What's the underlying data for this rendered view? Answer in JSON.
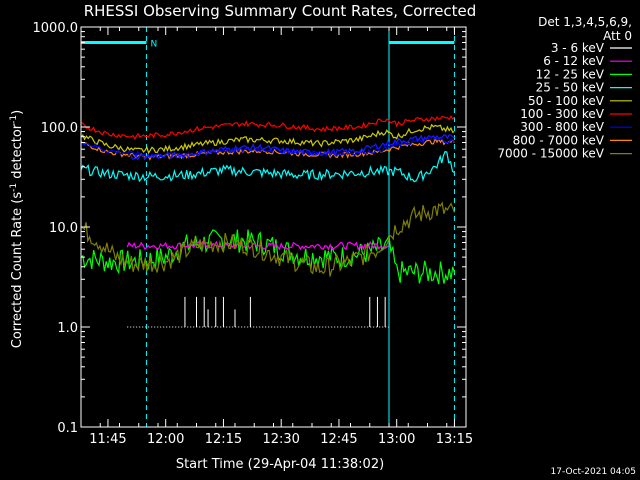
{
  "chart_data": {
    "type": "line",
    "title": "RHESSI Observing Summary Count Rates, Corrected",
    "xlabel": "Start Time (29-Apr-04 11:38:02)",
    "ylabel_main": "Corrected Count Rate (s",
    "ylabel_sup1": "-1",
    "ylabel_mid": " detector",
    "ylabel_sup2": "-1",
    "ylabel_end": ")",
    "yscale": "log",
    "ylim": [
      0.1,
      1000
    ],
    "xlim": [
      "11:38",
      "13:18"
    ],
    "x_ticks": [
      "11:45",
      "12:00",
      "12:15",
      "12:30",
      "12:45",
      "13:00",
      "13:15"
    ],
    "y_ticks": [
      "0.1",
      "1.0",
      "10.0",
      "100.0",
      "1000.0"
    ],
    "legend_header_1": "Det 1,3,4,5,6,9,",
    "legend_header_2": "Att 0",
    "legend_position": "top-right",
    "timestamp": "17-Oct-2021 04:05",
    "night_marker": "N",
    "night_bar_1": [
      "11:38",
      "11:55"
    ],
    "night_bar_2": [
      "12:58",
      "13:15"
    ],
    "vertical_solid": [
      "11:38",
      "12:58"
    ],
    "vertical_dashed": [
      "11:55",
      "13:15"
    ],
    "series": [
      {
        "name": "3 - 6 keV",
        "color": "#000000",
        "x": [
          "11:50",
          "12:05",
          "12:10",
          "12:15",
          "12:20",
          "12:25",
          "12:30",
          "12:40",
          "12:50",
          "12:55",
          "13:00",
          "13:05",
          "13:10",
          "13:15"
        ],
        "values": [
          50,
          52,
          56,
          60,
          62,
          63,
          58,
          55,
          58,
          65,
          72,
          76,
          80,
          78
        ]
      },
      {
        "name": "6 - 12 keV",
        "color": "#ff00ff",
        "x": [
          "11:50",
          "12:00",
          "12:10",
          "12:20",
          "12:30",
          "12:40",
          "12:50",
          "12:58"
        ],
        "values": [
          6.5,
          6.5,
          6.6,
          6.5,
          6.4,
          6.5,
          6.5,
          6.6
        ]
      },
      {
        "name": "12 - 25 keV",
        "color": "#00ff00",
        "x": [
          "11:38",
          "11:45",
          "11:52",
          "12:00",
          "12:05",
          "12:15",
          "12:25",
          "12:35",
          "12:45",
          "12:52",
          "12:58",
          "13:00",
          "13:05",
          "13:15"
        ],
        "values": [
          5.0,
          4.5,
          4.5,
          5.0,
          6.5,
          7.5,
          7.0,
          5.2,
          5.0,
          5.5,
          6.5,
          3.5,
          3.5,
          3.5
        ]
      },
      {
        "name": "25 - 50 keV",
        "color": "#00ffff",
        "x": [
          "11:38",
          "11:45",
          "11:55",
          "12:05",
          "12:15",
          "12:25",
          "12:35",
          "12:45",
          "12:55",
          "13:00",
          "13:05",
          "13:10",
          "13:13",
          "13:15"
        ],
        "values": [
          38,
          34,
          32,
          33,
          37,
          35,
          33,
          34,
          36,
          36,
          30,
          40,
          55,
          35
        ]
      },
      {
        "name": "50 - 100 keV",
        "color": "#cccc00",
        "x": [
          "11:38",
          "11:45",
          "11:52",
          "12:00",
          "12:10",
          "12:20",
          "12:30",
          "12:40",
          "12:50",
          "12:57",
          "13:00",
          "13:05",
          "13:10",
          "13:15"
        ],
        "values": [
          82,
          65,
          58,
          60,
          68,
          75,
          73,
          68,
          75,
          90,
          80,
          95,
          100,
          90
        ]
      },
      {
        "name": "100 - 300 keV",
        "color": "#ff0000",
        "x": [
          "11:38",
          "11:45",
          "11:52",
          "12:00",
          "12:10",
          "12:20",
          "12:30",
          "12:40",
          "12:50",
          "12:57",
          "13:00",
          "13:05",
          "13:10",
          "13:15"
        ],
        "values": [
          105,
          85,
          80,
          84,
          98,
          108,
          104,
          95,
          100,
          120,
          108,
          118,
          122,
          125
        ]
      },
      {
        "name": "300 - 800 keV",
        "color": "#0000ff",
        "x": [
          "11:38",
          "11:45",
          "11:55",
          "12:05",
          "12:15",
          "12:25",
          "12:35",
          "12:45",
          "12:55",
          "13:00",
          "13:05",
          "13:10",
          "13:15"
        ],
        "values": [
          72,
          58,
          52,
          54,
          58,
          60,
          56,
          54,
          58,
          66,
          72,
          75,
          72
        ]
      },
      {
        "name": "800 - 7000 keV",
        "color": "#ff8800",
        "x": [
          "11:38",
          "11:45",
          "11:55",
          "12:05",
          "12:15",
          "12:25",
          "12:35",
          "12:45",
          "12:55",
          "13:00",
          "13:05",
          "13:10",
          "13:15"
        ],
        "values": [
          70,
          56,
          50,
          52,
          56,
          58,
          54,
          52,
          56,
          63,
          68,
          72,
          70
        ]
      },
      {
        "name": "7000 - 15000 keV",
        "color": "#808000",
        "x": [
          "11:38",
          "11:42",
          "11:47",
          "11:52",
          "12:00",
          "12:08",
          "12:15",
          "12:22",
          "12:30",
          "12:40",
          "12:48",
          "12:55",
          "13:00",
          "13:05",
          "13:10",
          "13:15"
        ],
        "values": [
          10,
          7.5,
          5.0,
          4.2,
          4.5,
          6.5,
          7.0,
          6.5,
          5.0,
          3.8,
          4.5,
          6.0,
          10,
          13,
          15,
          14
        ]
      }
    ],
    "spikes_3_6": {
      "x": [
        "12:05",
        "12:08",
        "12:10",
        "12:11",
        "12:13",
        "12:15",
        "12:18",
        "12:22",
        "12:53",
        "12:55",
        "12:57"
      ],
      "values": [
        2.0,
        2.0,
        2.0,
        1.5,
        2.0,
        2.0,
        1.5,
        2.0,
        2.0,
        2.0,
        2.0
      ]
    },
    "low_3_6": {
      "x": [
        "11:50",
        "12:00",
        "12:10",
        "12:20",
        "12:30",
        "12:40",
        "12:50",
        "12:58"
      ],
      "values": [
        1.0,
        1.0,
        1.0,
        1.0,
        1.0,
        1.0,
        1.0,
        1.0
      ]
    }
  }
}
